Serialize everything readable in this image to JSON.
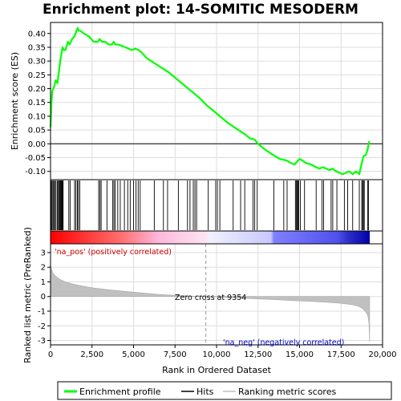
{
  "chart_data": {
    "type": "line",
    "title": "Enrichment plot: 14-SOMITIC MESODERM",
    "es_panel": {
      "ylabel": "Enrichment score (ES)",
      "ylim": [
        -0.13,
        0.44
      ],
      "yticks": [
        -0.1,
        -0.05,
        0.0,
        0.05,
        0.1,
        0.15,
        0.2,
        0.25,
        0.3,
        0.35,
        0.4
      ],
      "ytick_labels": [
        "-0.10",
        "-0.05",
        "0.00",
        "0.05",
        "0.10",
        "0.15",
        "0.20",
        "0.25",
        "0.30",
        "0.35",
        "0.40"
      ],
      "series": [
        {
          "name": "Enrichment profile",
          "color": "#00ff00",
          "x": [
            0,
            60,
            100,
            160,
            230,
            310,
            420,
            520,
            580,
            640,
            720,
            800,
            900,
            1050,
            1150,
            1300,
            1450,
            1560,
            1640,
            1700,
            1800,
            2000,
            2300,
            2600,
            2850,
            2950,
            3100,
            3300,
            3500,
            3700,
            3800,
            3900,
            4050,
            4300,
            4500,
            4700,
            4900,
            5100,
            5300,
            5500,
            5800,
            6200,
            6700,
            7100,
            7600,
            8100,
            8600,
            9000,
            9400,
            9800,
            10200,
            10700,
            11200,
            11700,
            12000,
            12300,
            12500,
            12900,
            13400,
            13800,
            14200,
            14500,
            14700,
            14850,
            15000,
            15150,
            15400,
            15700,
            16000,
            16200,
            16400,
            16600,
            16800,
            17000,
            17200,
            17400,
            17600,
            17800,
            18000,
            18200,
            18400,
            18600,
            18750,
            18850,
            19000,
            19100,
            19200
          ],
          "y": [
            0.06,
            0.15,
            0.19,
            0.2,
            0.21,
            0.23,
            0.22,
            0.27,
            0.3,
            0.32,
            0.35,
            0.34,
            0.34,
            0.37,
            0.36,
            0.38,
            0.39,
            0.41,
            0.42,
            0.41,
            0.41,
            0.4,
            0.39,
            0.37,
            0.37,
            0.38,
            0.37,
            0.37,
            0.36,
            0.36,
            0.37,
            0.36,
            0.36,
            0.355,
            0.35,
            0.345,
            0.34,
            0.345,
            0.34,
            0.33,
            0.31,
            0.295,
            0.275,
            0.26,
            0.235,
            0.21,
            0.185,
            0.165,
            0.14,
            0.12,
            0.1,
            0.075,
            0.055,
            0.035,
            0.02,
            0.015,
            0.0,
            -0.02,
            -0.04,
            -0.055,
            -0.06,
            -0.07,
            -0.075,
            -0.065,
            -0.055,
            -0.06,
            -0.07,
            -0.075,
            -0.085,
            -0.09,
            -0.085,
            -0.09,
            -0.095,
            -0.09,
            -0.1,
            -0.105,
            -0.11,
            -0.105,
            -0.1,
            -0.11,
            -0.1,
            -0.11,
            -0.07,
            -0.045,
            -0.04,
            -0.02,
            0.01
          ]
        }
      ]
    },
    "hits_panel": {
      "name": "Hits",
      "hit_positions": [
        40,
        90,
        150,
        200,
        260,
        330,
        410,
        470,
        520,
        560,
        600,
        640,
        680,
        720,
        760,
        1100,
        1180,
        1450,
        1530,
        1620,
        1680,
        1760,
        2900,
        2980,
        3050,
        3400,
        3750,
        3820,
        3900,
        4050,
        4200,
        4450,
        4650,
        4800,
        5000,
        5150,
        5280,
        5400,
        6250,
        6800,
        7050,
        7700,
        8250,
        8400,
        8600,
        8700,
        8800,
        9500,
        9950,
        10050,
        10200,
        11000,
        11450,
        11700,
        12200,
        12300,
        12450,
        13450,
        14050,
        14250,
        14750,
        14800,
        14850,
        14900,
        14950,
        15050,
        15300,
        16000,
        16350,
        16450,
        16900,
        17000,
        17250,
        17700,
        17900,
        18200,
        18600,
        18750,
        18800,
        18850,
        18900,
        19100,
        19150
      ]
    },
    "metric_panel": {
      "ylabel": "Ranked list metric (PreRanked)",
      "ylim": [
        -3.3,
        3.6
      ],
      "yticks": [
        -3,
        -2,
        -1,
        0,
        1,
        2,
        3
      ],
      "ytick_labels": [
        "-3",
        "-2",
        "-1",
        "0",
        "1",
        "2",
        "3"
      ],
      "name": "Ranking metric scores",
      "color": "#c0c0c0",
      "x": [
        0,
        30,
        80,
        150,
        250,
        400,
        600,
        900,
        1300,
        1800,
        2500,
        3500,
        4500,
        5500,
        6500,
        7500,
        8500,
        9354,
        10500,
        11500,
        12500,
        13500,
        14500,
        15500,
        16500,
        17300,
        17800,
        18200,
        18500,
        18700,
        18850,
        18950,
        19050,
        19120,
        19180,
        19220
      ],
      "y": [
        2.3,
        2.0,
        1.8,
        1.6,
        1.45,
        1.3,
        1.15,
        1.0,
        0.87,
        0.74,
        0.6,
        0.46,
        0.35,
        0.25,
        0.15,
        0.08,
        0.03,
        0.0,
        -0.06,
        -0.11,
        -0.16,
        -0.21,
        -0.27,
        -0.32,
        -0.38,
        -0.44,
        -0.5,
        -0.57,
        -0.65,
        -0.75,
        -0.88,
        -1.0,
        -1.15,
        -1.35,
        -1.8,
        -3.1
      ]
    },
    "xaxis": {
      "label": "Rank in Ordered Dataset",
      "xlim": [
        0,
        20000
      ],
      "xticks": [
        0,
        2500,
        5000,
        7500,
        10000,
        12500,
        15000,
        17500,
        20000
      ],
      "xtick_labels": [
        "0",
        "2,500",
        "5,000",
        "7,500",
        "10,000",
        "12,500",
        "15,000",
        "17,500",
        "20,000"
      ],
      "n_genes": 19230
    },
    "zero_cross": 9354,
    "annotations": {
      "pos_label": "'na_pos' (positively correlated)",
      "neg_label": "'na_neg' (negatively correlated)",
      "zero_label": "Zero cross at 9354"
    },
    "legend": {
      "placement": "bottom",
      "items": [
        {
          "label": "Enrichment profile",
          "color": "#00ff00"
        },
        {
          "label": "Hits",
          "color": "#000000"
        },
        {
          "label": "Ranking metric scores",
          "color": "#c0c0c0"
        }
      ]
    },
    "colors": {
      "pos_text": "#cc0000",
      "neg_text": "#0000cc",
      "grid": "#dddddd"
    }
  }
}
